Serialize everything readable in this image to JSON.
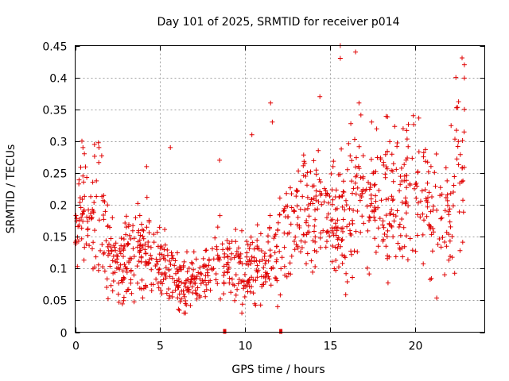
{
  "chart_data": {
    "type": "scatter",
    "title": "Day 101 of 2025, SRMTID for receiver p014",
    "xlabel": "GPS time / hours",
    "ylabel": "SRMTID / TECUs",
    "xlim": [
      0,
      24.1
    ],
    "ylim": [
      0,
      0.45
    ],
    "xticks": [
      0,
      5,
      10,
      15,
      20
    ],
    "xtick_labels": [
      "0",
      "5",
      "10",
      "15",
      "20"
    ],
    "yticks": [
      0,
      0.05,
      0.1,
      0.15,
      0.2,
      0.25,
      0.3,
      0.35,
      0.4,
      0.45
    ],
    "ytick_labels": [
      "0",
      "0.05",
      "0.1",
      "0.15",
      "0.2",
      "0.25",
      "0.3",
      "0.35",
      "0.4",
      "0.45"
    ],
    "grid": true,
    "marker": "+",
    "color": "#e00000",
    "point_count": 1100,
    "profile": [
      {
        "x": 0.0,
        "y": 0.16
      },
      {
        "x": 0.4,
        "y": 0.2
      },
      {
        "x": 0.8,
        "y": 0.17
      },
      {
        "x": 1.3,
        "y": 0.22
      },
      {
        "x": 1.8,
        "y": 0.14
      },
      {
        "x": 2.5,
        "y": 0.11
      },
      {
        "x": 3.5,
        "y": 0.13
      },
      {
        "x": 4.5,
        "y": 0.12
      },
      {
        "x": 5.5,
        "y": 0.1
      },
      {
        "x": 6.5,
        "y": 0.07
      },
      {
        "x": 7.5,
        "y": 0.09
      },
      {
        "x": 8.5,
        "y": 0.12
      },
      {
        "x": 9.5,
        "y": 0.1
      },
      {
        "x": 10.5,
        "y": 0.1
      },
      {
        "x": 11.5,
        "y": 0.11
      },
      {
        "x": 12.5,
        "y": 0.15
      },
      {
        "x": 13.5,
        "y": 0.19
      },
      {
        "x": 14.5,
        "y": 0.18
      },
      {
        "x": 15.5,
        "y": 0.16
      },
      {
        "x": 16.5,
        "y": 0.22
      },
      {
        "x": 17.5,
        "y": 0.2
      },
      {
        "x": 18.5,
        "y": 0.21
      },
      {
        "x": 19.5,
        "y": 0.21
      },
      {
        "x": 20.5,
        "y": 0.2
      },
      {
        "x": 21.5,
        "y": 0.16
      },
      {
        "x": 22.3,
        "y": 0.22
      },
      {
        "x": 22.9,
        "y": 0.31
      }
    ],
    "spikes": [
      {
        "x": 1.4,
        "y": 0.29
      },
      {
        "x": 4.2,
        "y": 0.26
      },
      {
        "x": 5.6,
        "y": 0.29
      },
      {
        "x": 8.5,
        "y": 0.27
      },
      {
        "x": 10.4,
        "y": 0.31
      },
      {
        "x": 11.5,
        "y": 0.36
      },
      {
        "x": 11.6,
        "y": 0.33
      },
      {
        "x": 14.4,
        "y": 0.37
      },
      {
        "x": 15.6,
        "y": 0.45
      },
      {
        "x": 15.6,
        "y": 0.43
      },
      {
        "x": 16.5,
        "y": 0.44
      },
      {
        "x": 16.7,
        "y": 0.36
      },
      {
        "x": 19.9,
        "y": 0.34
      },
      {
        "x": 22.4,
        "y": 0.4
      },
      {
        "x": 22.9,
        "y": 0.42
      },
      {
        "x": 22.9,
        "y": 0.35
      }
    ],
    "zero_markers": [
      {
        "x": 8.8,
        "y": 0
      },
      {
        "x": 12.1,
        "y": 0
      }
    ]
  }
}
